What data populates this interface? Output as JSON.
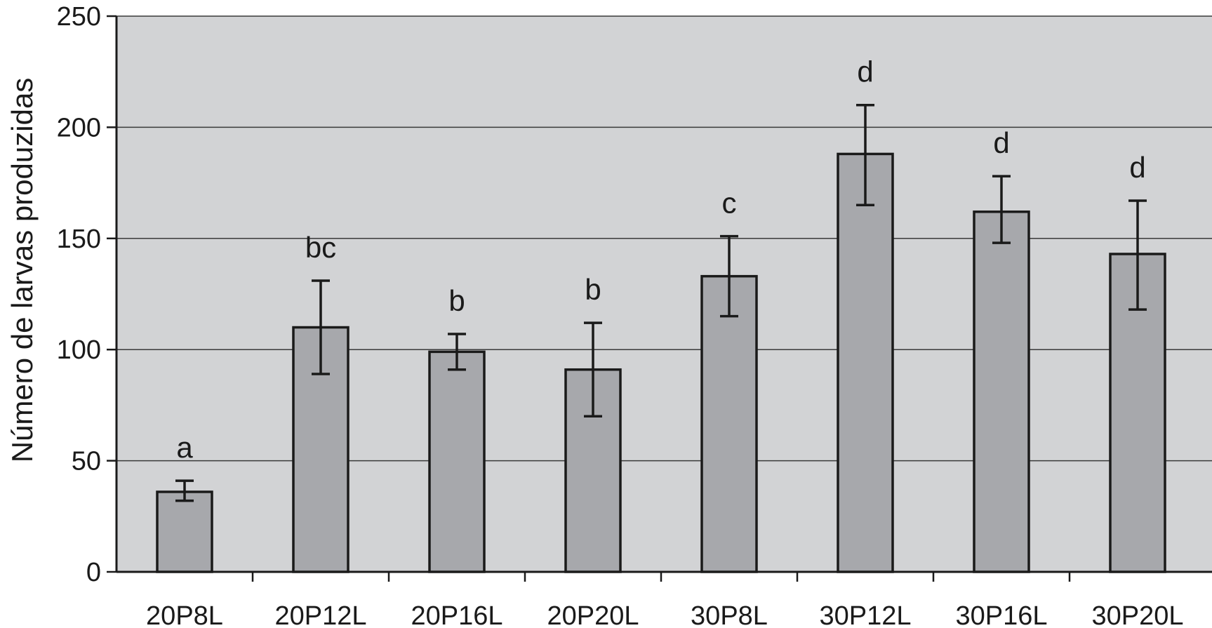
{
  "chart_data": {
    "type": "bar",
    "title": "",
    "xlabel": "",
    "ylabel": "Número de larvas produzidas",
    "ylim": [
      0,
      250
    ],
    "yticks": [
      0,
      50,
      100,
      150,
      200,
      250
    ],
    "grid": true,
    "categories": [
      "20P8L",
      "20P12L",
      "20P16L",
      "20P20L",
      "30P8L",
      "30P12L",
      "30P16L",
      "30P20L"
    ],
    "values": [
      36,
      110,
      99,
      91,
      133,
      188,
      162,
      143
    ],
    "error_low": [
      32,
      89,
      91,
      70,
      115,
      165,
      148,
      118
    ],
    "error_high": [
      41,
      131,
      107,
      112,
      151,
      210,
      178,
      167
    ],
    "significance_letters": [
      "a",
      "bc",
      "b",
      "b",
      "c",
      "d",
      "d",
      "d"
    ],
    "colors": {
      "plot_background": "#d2d3d5",
      "bar_fill": "#a7a8ac",
      "bar_stroke": "#1a1a1a",
      "gridline": "#3a3a3a"
    }
  }
}
